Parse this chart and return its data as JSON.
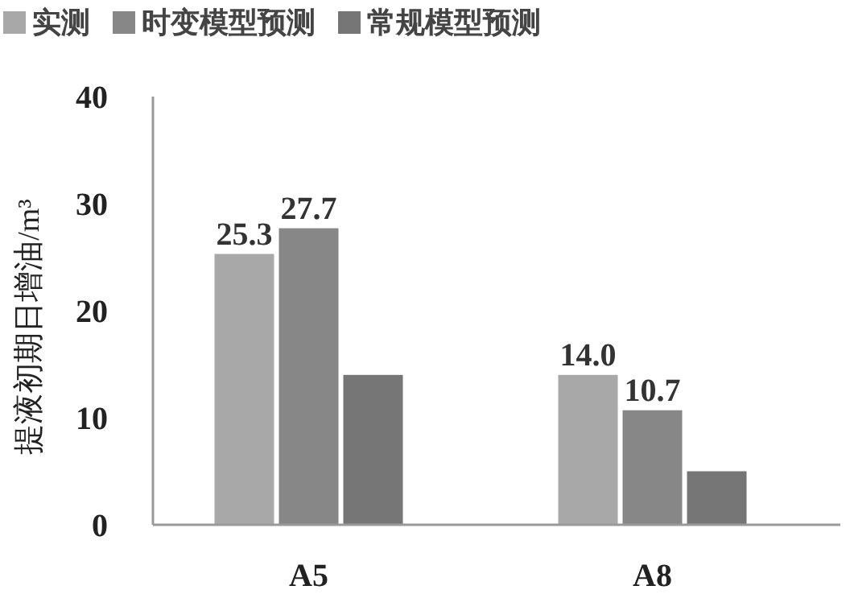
{
  "chart_data": {
    "type": "bar",
    "ylabel": "提液初期日增油/m³",
    "categories": [
      "A5",
      "A8"
    ],
    "series": [
      {
        "name": "实测",
        "color": "#a8a8a8",
        "values": [
          25.3,
          14.0
        ],
        "value_labels": [
          "25.3",
          "14.0"
        ]
      },
      {
        "name": "时变模型预测",
        "color": "#878787",
        "values": [
          27.7,
          10.7
        ],
        "value_labels": [
          "27.7",
          "10.7"
        ]
      },
      {
        "name": "常规模型预测",
        "color": "#767676",
        "values": [
          14.0,
          5.0
        ],
        "value_labels": [
          null,
          null
        ]
      }
    ],
    "ylim": [
      0,
      40
    ],
    "yticks": [
      0,
      10,
      20,
      30,
      40
    ],
    "legend": "top"
  }
}
